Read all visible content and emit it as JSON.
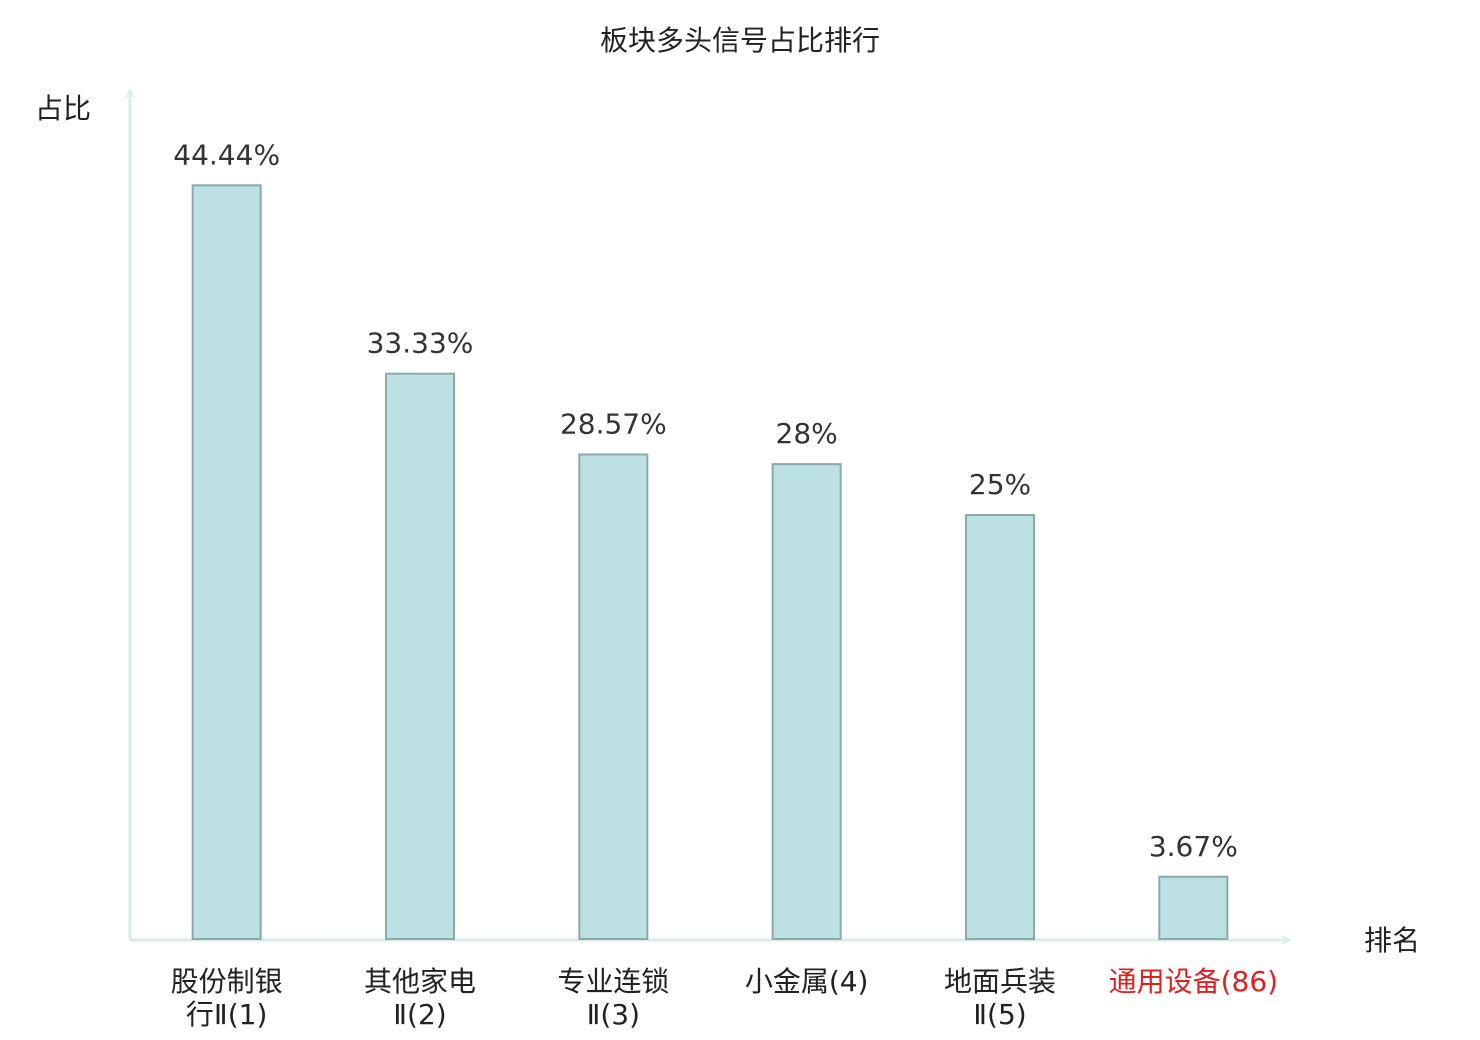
{
  "chart_data": {
    "type": "bar",
    "title": "板块多头信号占比排行",
    "y_label": "占比",
    "x_label": "排名",
    "categories": [
      "股份制银\n行Ⅱ(1)",
      "其他家电\nⅡ(2)",
      "专业连锁\nⅡ(3)",
      "小金属(4)",
      "地面兵装\nⅡ(5)",
      "通用设备(86)"
    ],
    "values": [
      44.44,
      33.33,
      28.57,
      28,
      25,
      3.67
    ],
    "value_labels": [
      "44.44%",
      "33.33%",
      "28.57%",
      "28%",
      "25%",
      "3.67%"
    ],
    "color": "#bde0e3",
    "label_colors": [
      "#222222",
      "#222222",
      "#222222",
      "#222222",
      "#222222",
      "#e02020"
    ],
    "ylim": [
      0,
      50
    ]
  }
}
